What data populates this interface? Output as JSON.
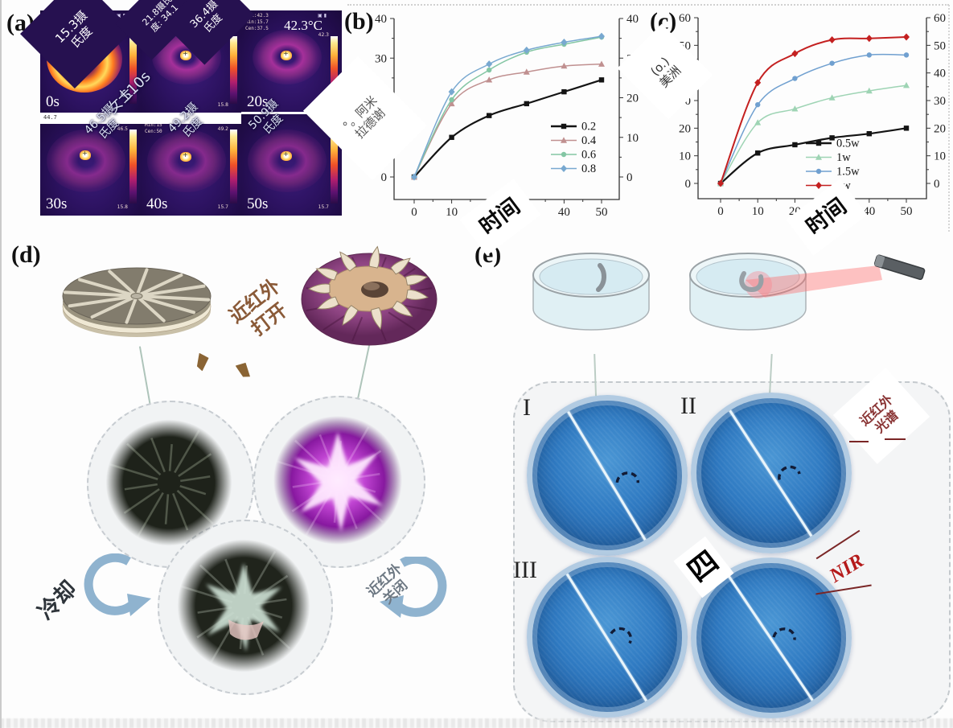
{
  "colors": {
    "thermal_bg": "#2c1260",
    "overlay_dark": "#261150",
    "nir_red": "#b51a1a",
    "dish_blue": "#2f7ac2",
    "flower_purple": "#8e4482",
    "arrow_blue": "#8fb3cf"
  },
  "panel_a": {
    "label": "(a)",
    "cells": [
      {
        "time": "0s",
        "h1": "Max:21.",
        "h2": "Min:17",
        "h3": "Cen:"
      },
      {
        "time": "",
        "bar_top": "36.4",
        "bar_bottom": "15.8"
      },
      {
        "time": "20s",
        "h1": "Max:42.3",
        "h2": "Min:15.7",
        "h3": "Cen:37.5",
        "big": "42.3°C",
        "bar_top": "42.3",
        "bar_bottom": "15.7"
      },
      {
        "time": "30s",
        "bar_top": "46.5",
        "bar_bottom": "15.8"
      },
      {
        "time": "40s",
        "h1": "Max:50.9",
        "h2": "Min:15",
        "h3": "Cen:50",
        "bar_top": "49.2",
        "bar_bottom": "15.7"
      },
      {
        "time": "50s",
        "bar_bottom": "15.7"
      }
    ],
    "gap_note": "44.7",
    "overlays": {
      "t153": "15.3摄\n氏度",
      "t218": "21.8摄氏\n度: 34.1",
      "t364": "36.4摄\n氏度",
      "s10s": "S10s",
      "nvshi": "女士",
      "t465": "46.5摄\n氏度",
      "t492": "49.2摄\n氏度",
      "t509": "50.9摄\n氏度"
    }
  },
  "panel_b": {
    "label": "(b)",
    "ylabel_overlay": "°。阿米\n拉德谢",
    "xlabel_overlay": "时间"
  },
  "panel_c": {
    "label": "(c)",
    "ylabel_overlay": "(o.)\n美洲",
    "xlabel_overlay": "时间"
  },
  "chart_data": [
    {
      "panel": "b",
      "type": "line",
      "x": [
        0,
        10,
        20,
        30,
        40,
        50
      ],
      "xticks": [
        0,
        10,
        20,
        30,
        40,
        50
      ],
      "yticks": [
        0,
        10,
        20,
        30,
        40
      ],
      "xlim": [
        0,
        50
      ],
      "ylim": [
        0,
        40
      ],
      "grid": false,
      "legend_position": "lower-right",
      "right_axis_mirrored": true,
      "series": [
        {
          "name": "0.2",
          "color": "#141414",
          "marker": "square",
          "width": 2.2,
          "values": [
            0,
            10,
            15.5,
            18.5,
            21.5,
            24.5
          ]
        },
        {
          "name": "0.4",
          "color": "#c09090",
          "marker": "triangle",
          "width": 1.5,
          "values": [
            0,
            18.5,
            24.5,
            26.5,
            28,
            28.5
          ]
        },
        {
          "name": "0.6",
          "color": "#84c6a4",
          "marker": "circle",
          "width": 1.5,
          "values": [
            0,
            19.5,
            27,
            31.5,
            33.5,
            35.3
          ]
        },
        {
          "name": "0.8",
          "color": "#78a8d0",
          "marker": "diamond",
          "width": 1.5,
          "values": [
            0,
            21.5,
            28.5,
            32,
            34,
            35.5
          ]
        }
      ]
    },
    {
      "panel": "c",
      "type": "line",
      "x": [
        0,
        10,
        20,
        30,
        40,
        50
      ],
      "xticks": [
        0,
        10,
        20,
        30,
        40,
        50
      ],
      "yticks": [
        0,
        10,
        20,
        30,
        40,
        50,
        60
      ],
      "xlim": [
        0,
        50
      ],
      "ylim": [
        0,
        60
      ],
      "grid": false,
      "legend_position": "lower-right",
      "right_axis_mirrored": true,
      "series": [
        {
          "name": "0.5w",
          "color": "#141414",
          "marker": "square",
          "width": 2.2,
          "values": [
            0,
            11,
            14,
            16.5,
            18,
            20
          ]
        },
        {
          "name": "1w",
          "color": "#9ed4b4",
          "marker": "triangle",
          "width": 1.5,
          "values": [
            0,
            22,
            27,
            31,
            33.5,
            35.5
          ]
        },
        {
          "name": "1.5w",
          "color": "#70a0d0",
          "marker": "circle",
          "width": 1.5,
          "values": [
            0,
            28.5,
            38,
            43.5,
            46.5,
            46.5
          ]
        },
        {
          "name": "2w",
          "color": "#c42020",
          "marker": "diamond",
          "width": 2.0,
          "values": [
            0,
            36.5,
            47,
            52,
            52.5,
            53
          ]
        }
      ]
    }
  ],
  "panel_d": {
    "label": "(d)",
    "nir_on": "近红外\n打开",
    "cooling": "冷却",
    "nir_off": "近红外\n关闭"
  },
  "panel_e": {
    "label": "(e)",
    "dish_labels": [
      "I",
      "II",
      "III"
    ],
    "overlay_four": "四",
    "nir_spectrum": "近红外\n光谱",
    "nir": "NIR"
  }
}
